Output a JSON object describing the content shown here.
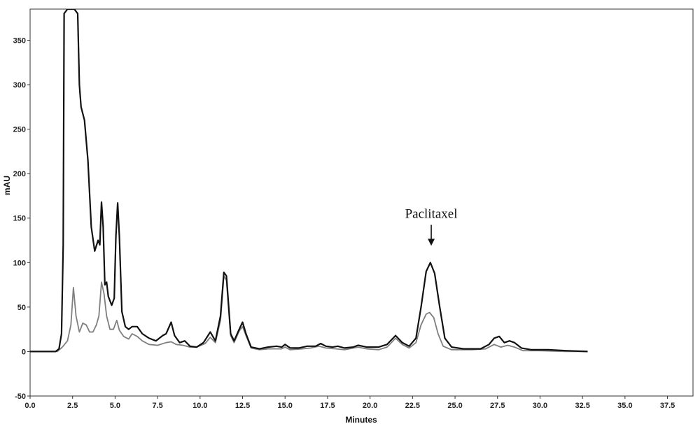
{
  "chart_data": {
    "type": "line",
    "xlabel": "Minutes",
    "ylabel": "mAU",
    "xlim": [
      0,
      39
    ],
    "ylim": [
      -50,
      385
    ],
    "x_ticks": [
      0.0,
      2.5,
      5.0,
      7.5,
      10.0,
      12.5,
      15.0,
      17.5,
      20.0,
      22.5,
      25.0,
      27.5,
      30.0,
      32.5,
      35.0,
      37.5
    ],
    "x_tick_labels": [
      "0.0",
      "2.5",
      "5.0",
      "7.5",
      "10.0",
      "12.5",
      "15.0",
      "17.5",
      "20.0",
      "22.5",
      "25.0",
      "27.5",
      "30.0",
      "32.5",
      "35.0",
      "37.5"
    ],
    "y_ticks": [
      -50,
      0,
      50,
      100,
      150,
      200,
      250,
      300,
      350
    ],
    "y_tick_labels": [
      "-50",
      "0",
      "50",
      "100",
      "150",
      "200",
      "250",
      "300",
      "350"
    ],
    "grid": false,
    "annotations": [
      {
        "text": "Paclitaxel",
        "x": 23.6,
        "y": 100,
        "arrow": "down"
      }
    ],
    "series": [
      {
        "color": "#111111",
        "points": [
          [
            0,
            0
          ],
          [
            1.5,
            0
          ],
          [
            1.7,
            3
          ],
          [
            1.85,
            20
          ],
          [
            1.95,
            120
          ],
          [
            2.0,
            380
          ],
          [
            2.2,
            385
          ],
          [
            2.6,
            385
          ],
          [
            2.8,
            380
          ],
          [
            2.9,
            300
          ],
          [
            3.0,
            275
          ],
          [
            3.2,
            260
          ],
          [
            3.4,
            215
          ],
          [
            3.6,
            140
          ],
          [
            3.8,
            113
          ],
          [
            4.0,
            125
          ],
          [
            4.1,
            120
          ],
          [
            4.2,
            168
          ],
          [
            4.3,
            140
          ],
          [
            4.4,
            75
          ],
          [
            4.5,
            78
          ],
          [
            4.6,
            62
          ],
          [
            4.8,
            52
          ],
          [
            4.95,
            60
          ],
          [
            5.05,
            130
          ],
          [
            5.15,
            167
          ],
          [
            5.25,
            130
          ],
          [
            5.4,
            45
          ],
          [
            5.6,
            28
          ],
          [
            5.8,
            25
          ],
          [
            6.0,
            28
          ],
          [
            6.3,
            28
          ],
          [
            6.6,
            20
          ],
          [
            7.0,
            15
          ],
          [
            7.4,
            12
          ],
          [
            7.8,
            18
          ],
          [
            8.0,
            20
          ],
          [
            8.3,
            33
          ],
          [
            8.5,
            18
          ],
          [
            8.8,
            10
          ],
          [
            9.1,
            12
          ],
          [
            9.4,
            6
          ],
          [
            9.8,
            5
          ],
          [
            10.2,
            10
          ],
          [
            10.6,
            22
          ],
          [
            10.9,
            12
          ],
          [
            11.2,
            40
          ],
          [
            11.4,
            89
          ],
          [
            11.55,
            85
          ],
          [
            11.8,
            20
          ],
          [
            12.0,
            12
          ],
          [
            12.3,
            25
          ],
          [
            12.5,
            33
          ],
          [
            12.7,
            20
          ],
          [
            13.0,
            5
          ],
          [
            13.5,
            3
          ],
          [
            14.0,
            5
          ],
          [
            14.5,
            6
          ],
          [
            14.8,
            5
          ],
          [
            15.0,
            8
          ],
          [
            15.3,
            4
          ],
          [
            15.8,
            4
          ],
          [
            16.3,
            6
          ],
          [
            16.8,
            6
          ],
          [
            17.1,
            9
          ],
          [
            17.4,
            6
          ],
          [
            17.8,
            5
          ],
          [
            18.1,
            6
          ],
          [
            18.5,
            4
          ],
          [
            19.0,
            5
          ],
          [
            19.3,
            7
          ],
          [
            19.8,
            5
          ],
          [
            20.5,
            5
          ],
          [
            21.0,
            8
          ],
          [
            21.5,
            18
          ],
          [
            21.9,
            10
          ],
          [
            22.3,
            6
          ],
          [
            22.7,
            15
          ],
          [
            23.0,
            50
          ],
          [
            23.3,
            90
          ],
          [
            23.55,
            100
          ],
          [
            23.8,
            88
          ],
          [
            24.1,
            50
          ],
          [
            24.4,
            15
          ],
          [
            24.8,
            5
          ],
          [
            25.5,
            3
          ],
          [
            26.5,
            3
          ],
          [
            27.0,
            8
          ],
          [
            27.3,
            15
          ],
          [
            27.6,
            17
          ],
          [
            27.9,
            10
          ],
          [
            28.2,
            12
          ],
          [
            28.5,
            10
          ],
          [
            28.9,
            4
          ],
          [
            29.5,
            2
          ],
          [
            30.5,
            2
          ],
          [
            31.5,
            1
          ],
          [
            32.8,
            0
          ]
        ]
      },
      {
        "color": "#7f7f7f",
        "points": [
          [
            0,
            0
          ],
          [
            1.6,
            0
          ],
          [
            1.9,
            5
          ],
          [
            2.2,
            12
          ],
          [
            2.4,
            30
          ],
          [
            2.55,
            72
          ],
          [
            2.7,
            40
          ],
          [
            2.9,
            22
          ],
          [
            3.1,
            32
          ],
          [
            3.3,
            30
          ],
          [
            3.5,
            22
          ],
          [
            3.7,
            22
          ],
          [
            3.9,
            30
          ],
          [
            4.05,
            40
          ],
          [
            4.2,
            78
          ],
          [
            4.35,
            65
          ],
          [
            4.5,
            40
          ],
          [
            4.7,
            25
          ],
          [
            4.9,
            25
          ],
          [
            5.1,
            35
          ],
          [
            5.25,
            24
          ],
          [
            5.5,
            17
          ],
          [
            5.8,
            14
          ],
          [
            6.0,
            20
          ],
          [
            6.3,
            17
          ],
          [
            6.6,
            12
          ],
          [
            7.0,
            8
          ],
          [
            7.5,
            7
          ],
          [
            8.0,
            10
          ],
          [
            8.3,
            11
          ],
          [
            8.6,
            8
          ],
          [
            9.0,
            7
          ],
          [
            9.4,
            5
          ],
          [
            9.8,
            5
          ],
          [
            10.3,
            9
          ],
          [
            10.6,
            16
          ],
          [
            10.9,
            10
          ],
          [
            11.2,
            35
          ],
          [
            11.4,
            85
          ],
          [
            11.55,
            80
          ],
          [
            11.8,
            18
          ],
          [
            12.0,
            10
          ],
          [
            12.3,
            23
          ],
          [
            12.5,
            28
          ],
          [
            12.7,
            18
          ],
          [
            13.0,
            4
          ],
          [
            13.5,
            2
          ],
          [
            14.0,
            3
          ],
          [
            14.8,
            3
          ],
          [
            15.0,
            5
          ],
          [
            15.3,
            2
          ],
          [
            16.0,
            3
          ],
          [
            16.5,
            4
          ],
          [
            17.0,
            6
          ],
          [
            17.4,
            4
          ],
          [
            18.0,
            3
          ],
          [
            18.5,
            2
          ],
          [
            19.3,
            5
          ],
          [
            19.8,
            3
          ],
          [
            20.5,
            2
          ],
          [
            21.0,
            5
          ],
          [
            21.5,
            15
          ],
          [
            21.9,
            8
          ],
          [
            22.3,
            4
          ],
          [
            22.7,
            10
          ],
          [
            23.0,
            30
          ],
          [
            23.3,
            42
          ],
          [
            23.5,
            44
          ],
          [
            23.75,
            38
          ],
          [
            24.0,
            20
          ],
          [
            24.3,
            6
          ],
          [
            24.8,
            2
          ],
          [
            26.0,
            2
          ],
          [
            26.8,
            3
          ],
          [
            27.3,
            8
          ],
          [
            27.7,
            5
          ],
          [
            28.1,
            7
          ],
          [
            28.5,
            5
          ],
          [
            29.0,
            1
          ],
          [
            30.0,
            1
          ],
          [
            31.5,
            0
          ],
          [
            32.8,
            0
          ]
        ]
      }
    ]
  }
}
